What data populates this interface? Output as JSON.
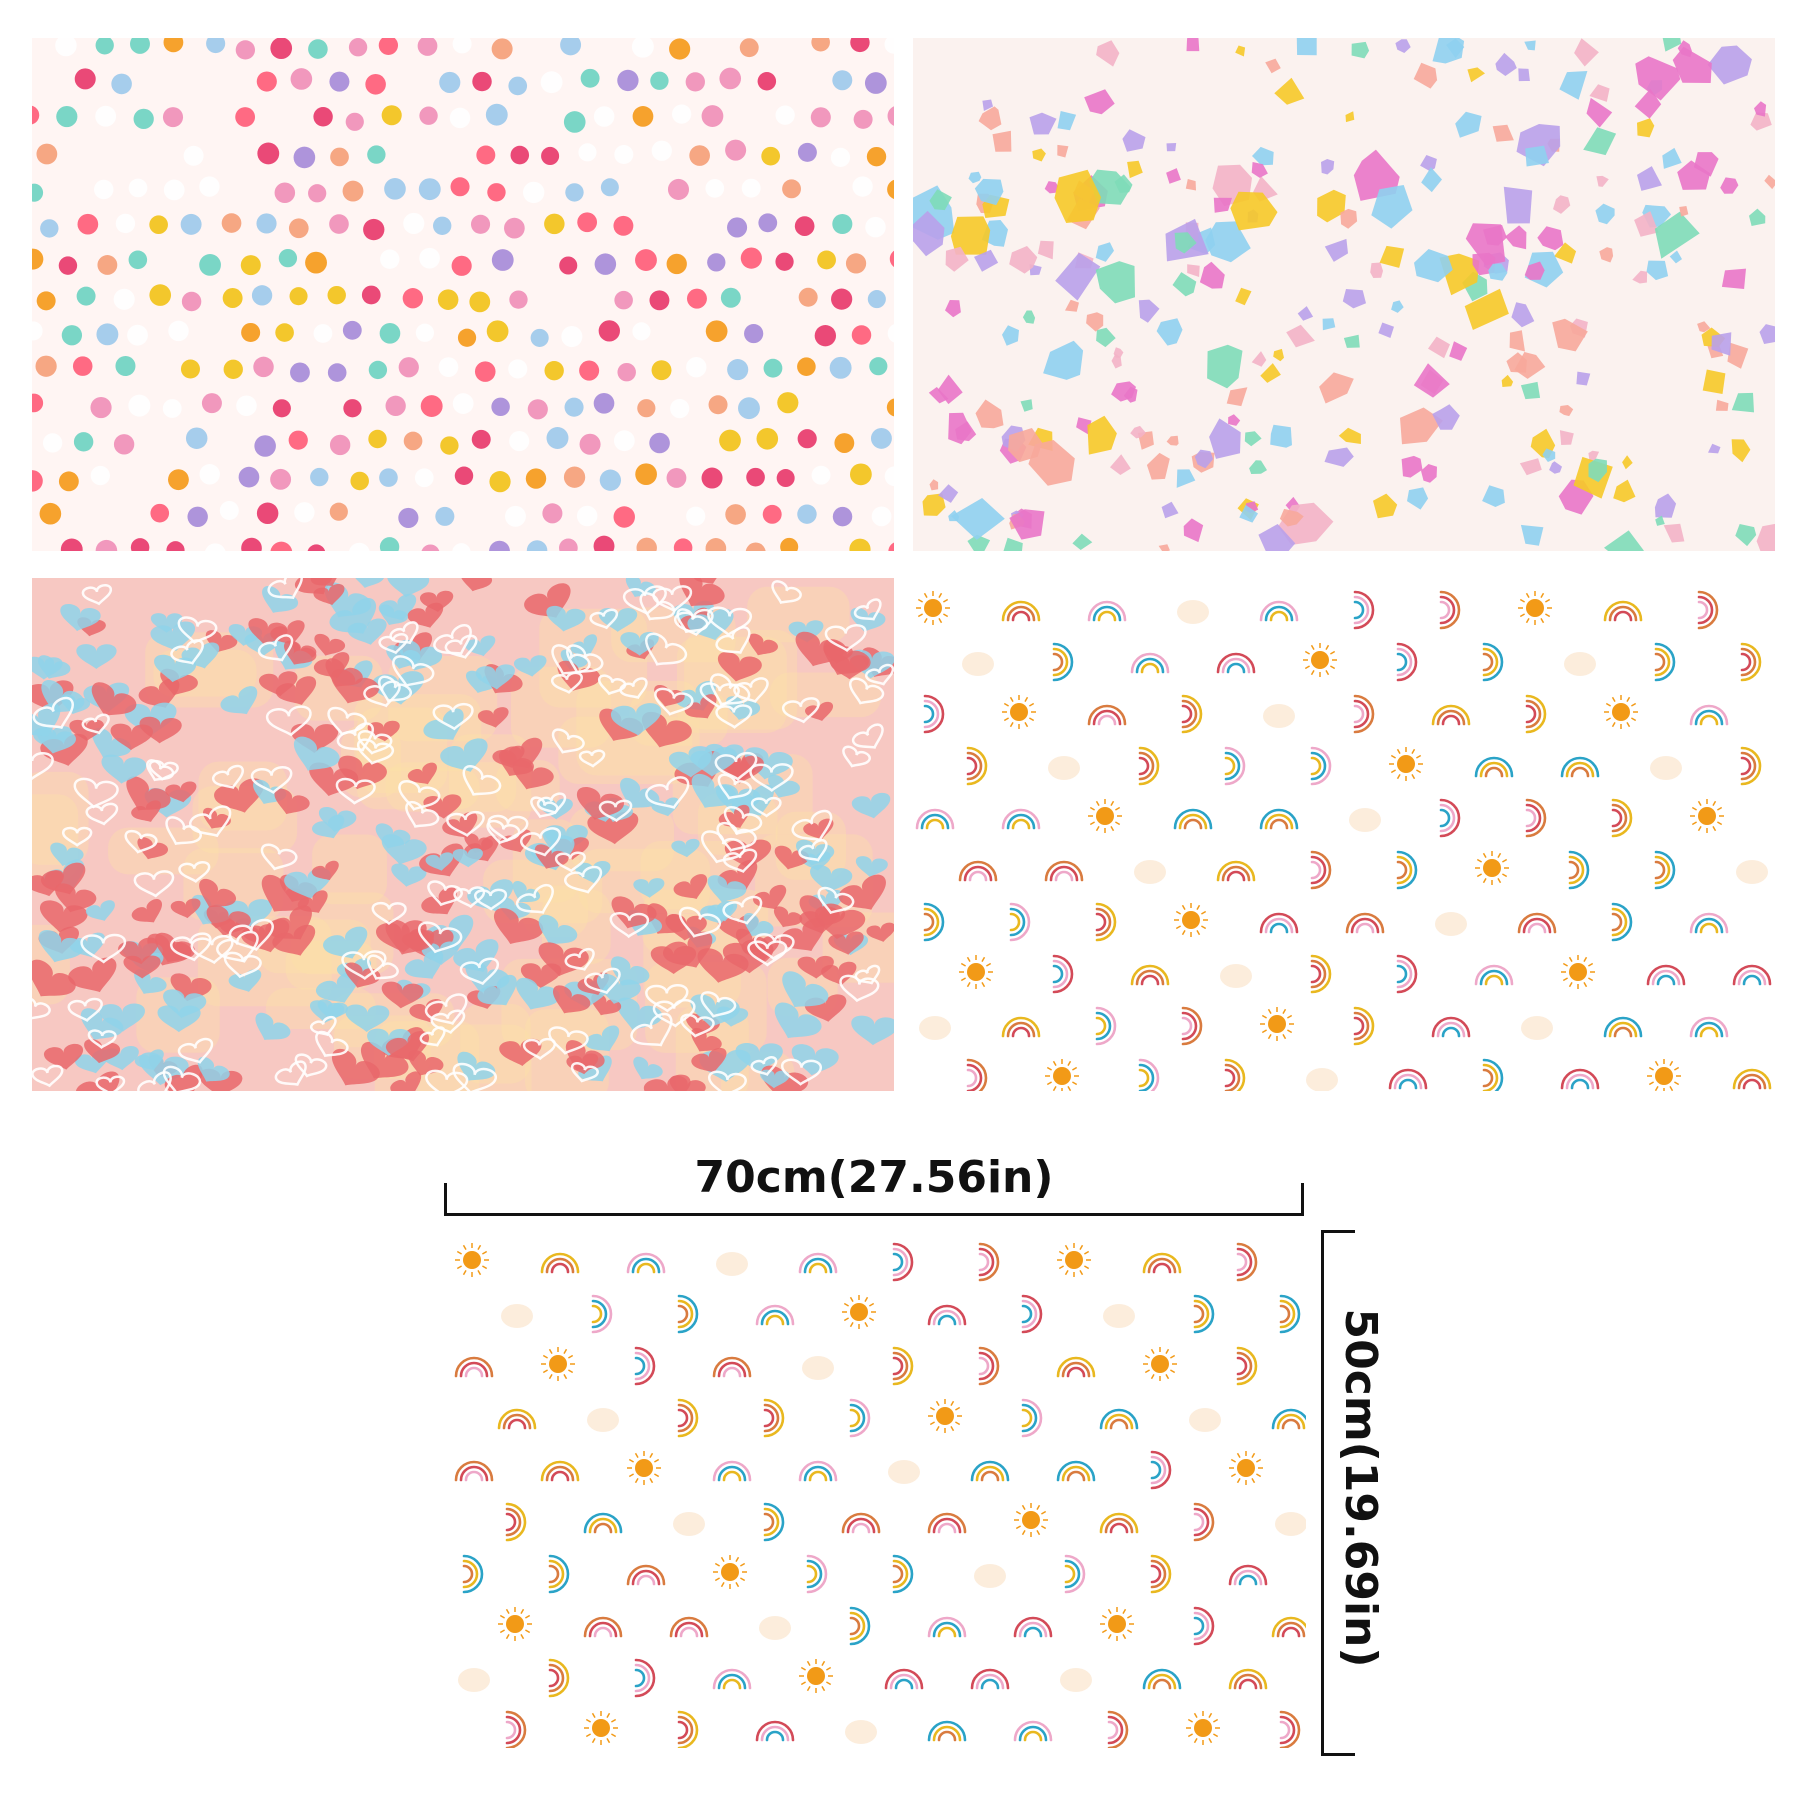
{
  "panels": [
    {
      "id": "dots",
      "pattern": "polka-dots",
      "background": "#fff5f3"
    },
    {
      "id": "terrazzo",
      "pattern": "terrazzo-confetti",
      "background": "#fbf2ef"
    },
    {
      "id": "hearts",
      "pattern": "watercolor-hearts",
      "background": "#f7c8c2"
    },
    {
      "id": "rainbow",
      "pattern": "rainbows-and-suns",
      "background": "#ffffff"
    }
  ],
  "sample": {
    "pattern": "rainbows-and-suns",
    "background": "#ffffff"
  },
  "dimensions": {
    "width_label": "70cm(27.56in)",
    "height_label": "50cm(19.69in)"
  },
  "palette": {
    "dots": [
      "#e83a6c",
      "#f59a1c",
      "#f2c21b",
      "#a78bd9",
      "#f08fb8",
      "#6fd3c2",
      "#9ec9ec",
      "#f5a07a",
      "#ff5d7a"
    ],
    "terrazzo": [
      "#b9a1ea",
      "#f3b2c6",
      "#7edcb8",
      "#f6c928",
      "#8fd0ef",
      "#e975c8",
      "#f7a89b"
    ],
    "hearts": [
      "#e9676b",
      "#8fd4ea",
      "#fbe3a6",
      "#f5a3b0"
    ],
    "rainbow": [
      "#d34a58",
      "#eea8c9",
      "#2aa3c7",
      "#e9b81f",
      "#d97b3f"
    ],
    "sun": "#f29a17"
  }
}
